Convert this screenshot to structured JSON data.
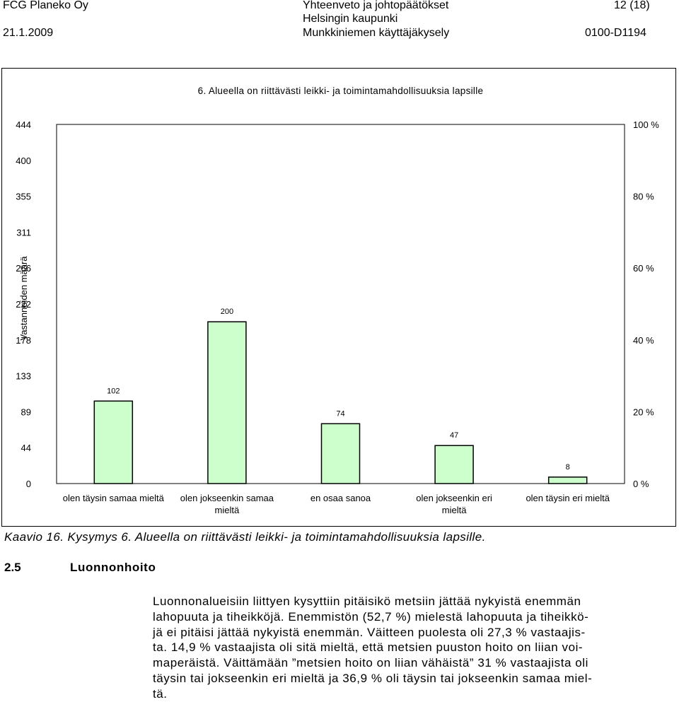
{
  "header": {
    "company": "FCG Planeko Oy",
    "date": "21.1.2009",
    "doc_type": "Yhteenveto ja johtopäätökset",
    "client": "Helsingin kaupunki",
    "survey": "Munkkiniemen käyttäjäkysely",
    "page": "12 (18)",
    "project_code": "0100-D1194"
  },
  "chart_data": {
    "type": "bar",
    "title": "6. Alueella on riittävästi leikki- ja toimintamahdollisuuksia lapsille",
    "ylabel": "Vastanneiden määrä",
    "categories": [
      [
        "olen täysin samaa mieltä"
      ],
      [
        "olen jokseenkin samaa",
        "mieltä"
      ],
      [
        "en osaa sanoa"
      ],
      [
        "olen jokseenkin eri",
        "mieltä"
      ],
      [
        "olen täysin eri mieltä"
      ]
    ],
    "values": [
      102,
      200,
      74,
      47,
      8
    ],
    "ylim": [
      0,
      444
    ],
    "y_ticks": [
      "0",
      "44",
      "89",
      "133",
      "178",
      "222",
      "266",
      "311",
      "355",
      "400",
      "444"
    ],
    "y2_ticks": [
      "0 %",
      "20 %",
      "40 %",
      "60 %",
      "80 %",
      "100 %"
    ],
    "bar_color": "#ccffcc",
    "grid": false
  },
  "caption": "Kaavio 16. Kysymys 6. Alueella on riittävästi leikki- ja toimintamahdollisuuksia lapsille.",
  "section": {
    "number": "2.5",
    "title": "Luonnonhoito"
  },
  "paragraph_lines": [
    "Luonnonalueisiin liittyen kysyttiin pitäisikö metsiin jättää nykyistä enemmän",
    "lahopuuta ja tiheikköjä. Enemmistön (52,7 %) mielestä lahopuuta ja tiheikkö-",
    "jä ei pitäisi jättää nykyistä enemmän. Väitteen puolesta oli 27,3 % vastaajis-",
    "ta. 14,9 % vastaajista oli sitä mieltä, että metsien puuston hoito on liian voi-",
    "maperäistä. Väittämään ”metsien hoito on liian vähäistä” 31 % vastaajista oli",
    "täysin tai jokseenkin eri mieltä ja 36,9 % oli täysin tai jokseenkin samaa miel-",
    "tä."
  ]
}
